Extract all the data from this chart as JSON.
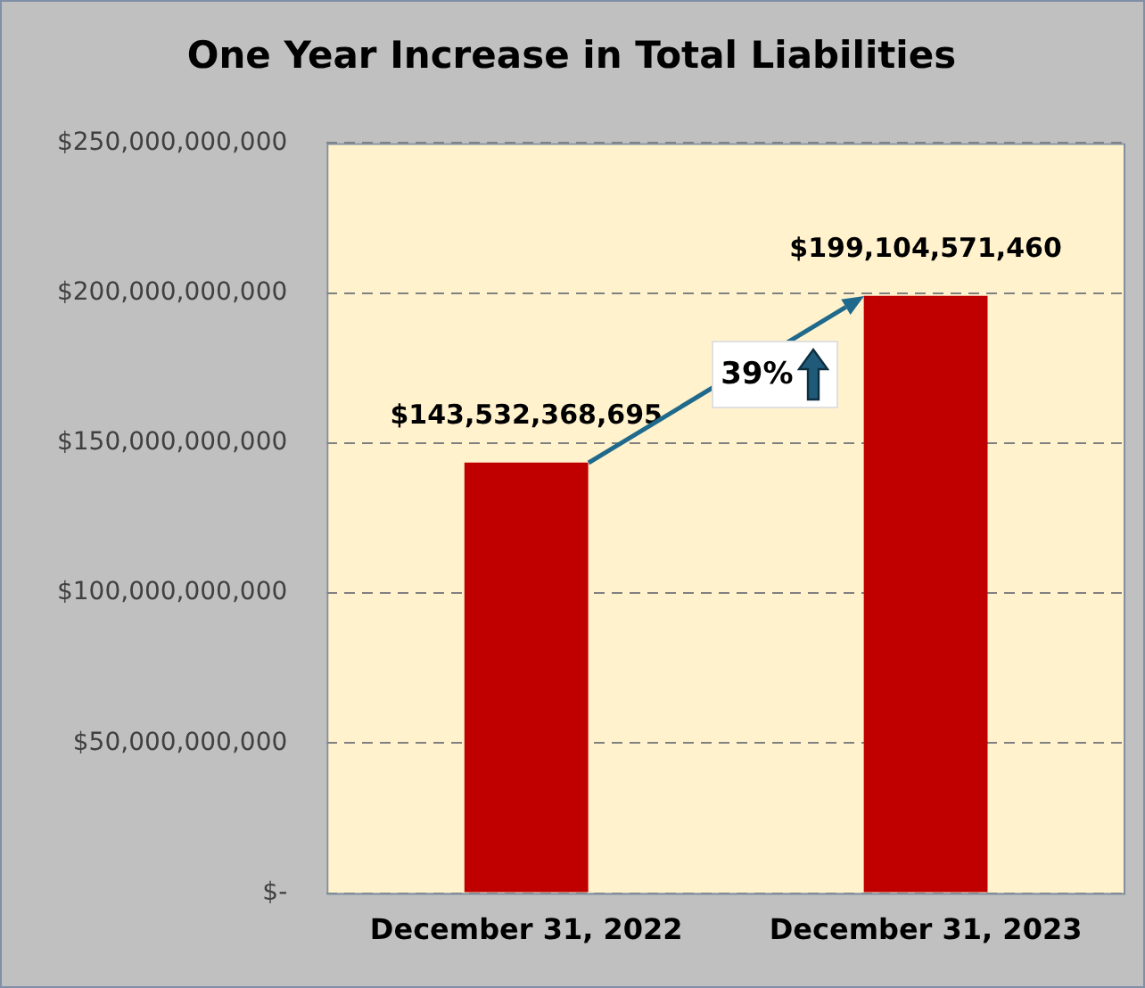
{
  "chart_data": {
    "type": "bar",
    "title": "One Year Increase in Total Liabilities",
    "categories": [
      "December 31, 2022",
      "December 31, 2023"
    ],
    "values": [
      143532368695,
      199104571460
    ],
    "color": "#c00000",
    "value_labels": [
      "$143,532,368,695",
      "$199,104,571,460"
    ],
    "ylim": [
      0,
      250000000000
    ],
    "yticks": [
      {
        "value": 0,
        "label": "$-"
      },
      {
        "value": 50000000000,
        "label": "$50,000,000,000"
      },
      {
        "value": 100000000000,
        "label": "$100,000,000,000"
      },
      {
        "value": 150000000000,
        "label": "$150,000,000,000"
      },
      {
        "value": 200000000000,
        "label": "$200,000,000,000"
      },
      {
        "value": 250000000000,
        "label": "$250,000,000,000"
      }
    ],
    "grid": "y",
    "annotations": [
      "39%"
    ]
  }
}
